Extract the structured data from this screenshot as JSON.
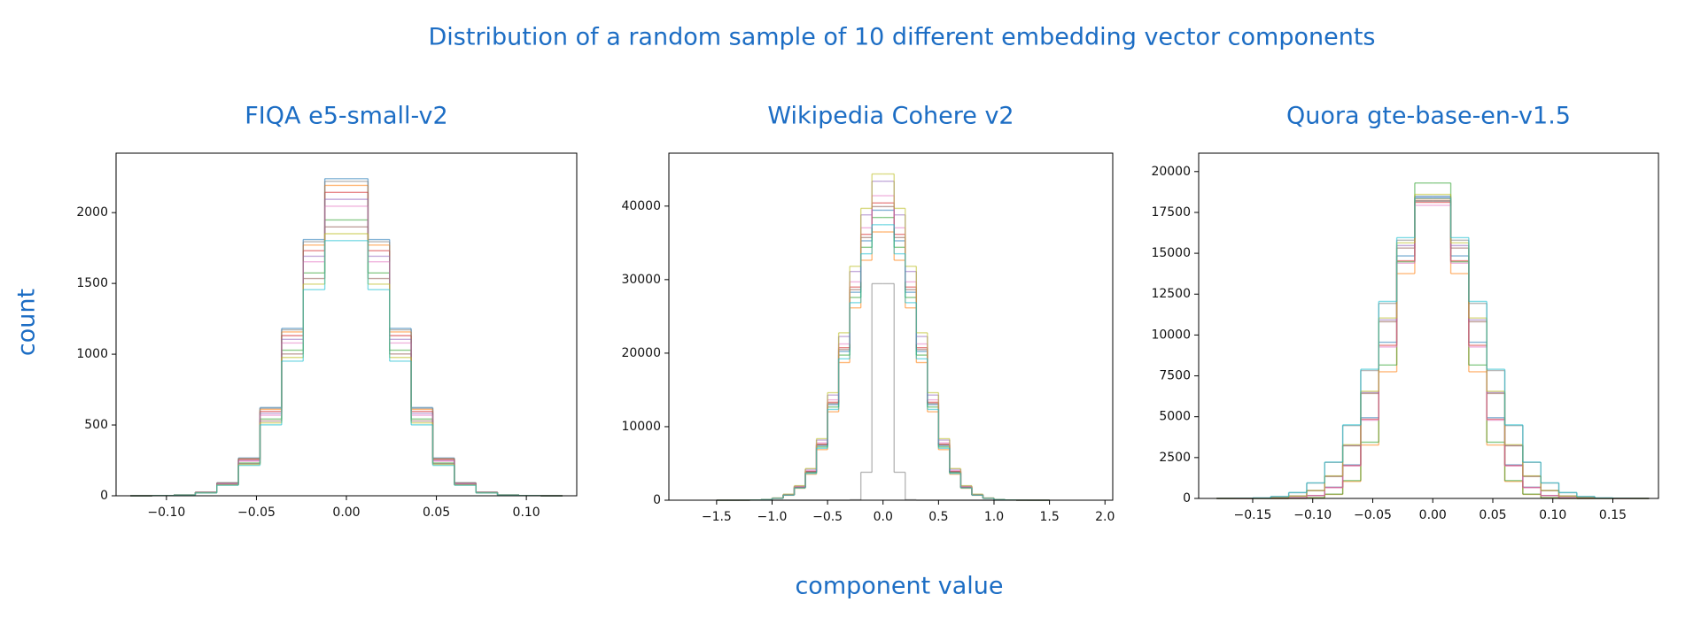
{
  "title": "Distribution of a random sample of 10 different embedding vector components",
  "xlabel": "component value",
  "ylabel": "count",
  "chart_data": [
    {
      "type": "histogram",
      "title": "FIQA e5-small-v2",
      "bins": [
        -0.12,
        -0.108,
        -0.096,
        -0.084,
        -0.072,
        -0.06,
        -0.048,
        -0.036,
        -0.024,
        -0.012,
        0,
        0.012,
        0.024,
        0.036,
        0.048,
        0.06,
        0.072,
        0.084,
        0.096,
        0.108,
        0.12
      ],
      "series": [
        {
          "color": "#1f77b4",
          "values": [
            0,
            1,
            6,
            25,
            92,
            267,
            623,
            1182,
            1810,
            2240,
            2240,
            1810,
            1182,
            623,
            267,
            92,
            25,
            6,
            1,
            0
          ]
        },
        {
          "color": "#ff7f0e",
          "values": [
            0,
            1,
            6,
            25,
            90,
            261,
            610,
            1157,
            1771,
            2192,
            2192,
            1771,
            1157,
            610,
            261,
            90,
            25,
            6,
            1,
            0
          ]
        },
        {
          "color": "#2ca02c",
          "values": [
            0,
            1,
            5,
            22,
            80,
            232,
            542,
            1028,
            1574,
            1948,
            1948,
            1574,
            1028,
            542,
            232,
            80,
            22,
            5,
            1,
            0
          ]
        },
        {
          "color": "#d62728",
          "values": [
            0,
            1,
            6,
            24,
            88,
            255,
            596,
            1131,
            1731,
            2143,
            2143,
            1731,
            1131,
            596,
            255,
            88,
            24,
            6,
            1,
            0
          ]
        },
        {
          "color": "#9467bd",
          "values": [
            0,
            1,
            5,
            24,
            86,
            249,
            583,
            1105,
            1692,
            2094,
            2094,
            1692,
            1105,
            583,
            249,
            86,
            24,
            5,
            1,
            0
          ]
        },
        {
          "color": "#8c564b",
          "values": [
            0,
            1,
            5,
            21,
            78,
            226,
            528,
            1002,
            1535,
            1899,
            1899,
            1535,
            1002,
            528,
            226,
            78,
            21,
            5,
            1,
            0
          ]
        },
        {
          "color": "#e377c2",
          "values": [
            0,
            1,
            5,
            23,
            84,
            244,
            569,
            1079,
            1653,
            2045,
            2045,
            1653,
            1079,
            569,
            244,
            84,
            23,
            5,
            1,
            0
          ]
        },
        {
          "color": "#7f7f7f",
          "values": [
            0,
            1,
            6,
            25,
            91,
            264,
            618,
            1172,
            1794,
            2221,
            2221,
            1794,
            1172,
            618,
            264,
            91,
            25,
            6,
            1,
            0
          ]
        },
        {
          "color": "#bcbd22",
          "values": [
            0,
            1,
            5,
            21,
            76,
            220,
            515,
            977,
            1495,
            1851,
            1851,
            1495,
            977,
            515,
            220,
            76,
            21,
            5,
            1,
            0
          ]
        },
        {
          "color": "#17becf",
          "values": [
            0,
            1,
            5,
            20,
            74,
            215,
            501,
            951,
            1456,
            1802,
            1802,
            1456,
            951,
            501,
            215,
            74,
            20,
            5,
            1,
            0
          ]
        }
      ],
      "xlim": [
        -0.128,
        0.128
      ],
      "ylim": [
        0,
        2420
      ],
      "xticks": [
        {
          "value": -0.1,
          "label": "−0.10"
        },
        {
          "value": -0.05,
          "label": "−0.05"
        },
        {
          "value": 0,
          "label": "0.00"
        },
        {
          "value": 0.05,
          "label": "0.05"
        },
        {
          "value": 0.1,
          "label": "0.10"
        }
      ],
      "yticks": [
        0,
        500,
        1000,
        1500,
        2000
      ]
    },
    {
      "type": "histogram",
      "title": "Wikipedia Cohere v2",
      "bins": [
        -1.5,
        -1.4,
        -1.3,
        -1.2,
        -1.1,
        -1.0,
        -0.9,
        -0.8,
        -0.7,
        -0.6,
        -0.5,
        -0.4,
        -0.3,
        -0.2,
        -0.1,
        0,
        0.1,
        0.2,
        0.3,
        0.4,
        0.5,
        0.6,
        0.7,
        0.8,
        0.9,
        1.0,
        1.1,
        1.2,
        1.3,
        1.4,
        1.5
      ],
      "series": [
        {
          "color": "#1f77b4",
          "values": [
            0,
            2,
            7,
            26,
            88,
            268,
            724,
            1756,
            3828,
            7440,
            13000,
            20240,
            28280,
            35280,
            39440,
            39440,
            35280,
            28280,
            20240,
            13000,
            7440,
            3828,
            1756,
            724,
            268,
            88,
            26,
            7,
            2,
            0
          ]
        },
        {
          "color": "#ff7f0e",
          "values": [
            0,
            2,
            6,
            24,
            81,
            248,
            670,
            1624,
            3541,
            6882,
            12025,
            18722,
            26159,
            32634,
            36482,
            36482,
            32634,
            26159,
            18722,
            12025,
            6882,
            3541,
            1624,
            670,
            248,
            81,
            24,
            6,
            2,
            0
          ]
        },
        {
          "color": "#2ca02c",
          "values": [
            0,
            2,
            7,
            25,
            86,
            261,
            706,
            1712,
            3732,
            7254,
            12675,
            19734,
            27573,
            34398,
            38454,
            38454,
            34398,
            27573,
            19734,
            12675,
            7254,
            3732,
            1712,
            706,
            261,
            86,
            25,
            7,
            2,
            0
          ]
        },
        {
          "color": "#d62728",
          "values": [
            0,
            2,
            7,
            27,
            90,
            275,
            742,
            1800,
            3924,
            7626,
            13325,
            20746,
            28987,
            36162,
            40426,
            40426,
            36162,
            28987,
            20746,
            13325,
            7626,
            3924,
            1800,
            742,
            275,
            90,
            27,
            7,
            2,
            0
          ]
        },
        {
          "color": "#9467bd",
          "values": [
            0,
            2,
            8,
            29,
            97,
            295,
            796,
            1932,
            4211,
            8184,
            14300,
            22264,
            31108,
            38808,
            43384,
            43384,
            38808,
            31108,
            22264,
            14300,
            8184,
            4211,
            1932,
            796,
            295,
            97,
            29,
            8,
            2,
            0
          ]
        },
        {
          "color": "#8c564b",
          "values": [
            0,
            2,
            7,
            26,
            89,
            271,
            733,
            1778,
            3876,
            7533,
            13163,
            20493,
            28634,
            35721,
            39933,
            39933,
            35721,
            28634,
            20493,
            13163,
            7533,
            3876,
            1778,
            733,
            271,
            89,
            26,
            7,
            2,
            0
          ]
        },
        {
          "color": "#e377c2",
          "values": [
            0,
            2,
            7,
            27,
            92,
            281,
            760,
            1844,
            4019,
            7812,
            13650,
            21252,
            29694,
            37044,
            41412,
            41412,
            37044,
            29694,
            21252,
            13650,
            7812,
            4019,
            1844,
            760,
            281,
            92,
            27,
            7,
            2,
            0
          ]
        },
        {
          "color": "#7f7f7f",
          "values": [
            0,
            0,
            0,
            0,
            0,
            0,
            0,
            0,
            0,
            0,
            0,
            0,
            65,
            3800,
            29450,
            29450,
            3800,
            65,
            0,
            0,
            0,
            0,
            0,
            0,
            0,
            0,
            0,
            0,
            0,
            0
          ]
        },
        {
          "color": "#bcbd22",
          "values": [
            0,
            2,
            8,
            29,
            99,
            302,
            815,
            1976,
            4307,
            8370,
            14625,
            22770,
            31815,
            39690,
            44370,
            44370,
            39690,
            31815,
            22770,
            14625,
            8370,
            4307,
            1976,
            815,
            302,
            99,
            29,
            8,
            2,
            0
          ]
        },
        {
          "color": "#17becf",
          "values": [
            0,
            2,
            7,
            25,
            84,
            255,
            688,
            1668,
            3637,
            7068,
            12350,
            19228,
            26866,
            33516,
            37468,
            37468,
            33516,
            26866,
            19228,
            12350,
            7068,
            3637,
            1668,
            688,
            255,
            84,
            25,
            7,
            2,
            0
          ]
        }
      ],
      "xlim": [
        -1.93,
        2.07
      ],
      "ylim": [
        0,
        47200
      ],
      "xticks": [
        {
          "value": -1.5,
          "label": "−1.5"
        },
        {
          "value": -1,
          "label": "−1.0"
        },
        {
          "value": -0.5,
          "label": "−0.5"
        },
        {
          "value": 0,
          "label": "0.0"
        },
        {
          "value": 0.5,
          "label": "0.5"
        },
        {
          "value": 1,
          "label": "1.0"
        },
        {
          "value": 1.5,
          "label": "1.5"
        },
        {
          "value": 2,
          "label": "2.0"
        }
      ],
      "yticks": [
        0,
        10000,
        20000,
        30000,
        40000
      ]
    },
    {
      "type": "histogram",
      "title": "Quora gte-base-en-v1.5",
      "bins": [
        -0.18,
        -0.165,
        -0.15,
        -0.135,
        -0.12,
        -0.105,
        -0.09,
        -0.075,
        -0.06,
        -0.045,
        -0.03,
        -0.015,
        0,
        0.015,
        0.03,
        0.045,
        0.06,
        0.075,
        0.09,
        0.105,
        0.12,
        0.135,
        0.15,
        0.165,
        0.18
      ],
      "series": [
        {
          "color": "#1f77b4",
          "values": [
            0,
            0,
            1,
            7,
            40,
            182,
            684,
            2052,
            4940,
            9557,
            14839,
            18487,
            18487,
            14839,
            9557,
            4940,
            2052,
            684,
            182,
            40,
            7,
            1,
            0,
            0
          ]
        },
        {
          "color": "#ff7f0e",
          "values": [
            0,
            0,
            0,
            0,
            6,
            44,
            247,
            1039,
            3268,
            7752,
            13756,
            18335,
            18335,
            13756,
            7752,
            3268,
            1039,
            247,
            44,
            6,
            0,
            0,
            0,
            0
          ]
        },
        {
          "color": "#2ca02c",
          "values": [
            0,
            0,
            0,
            0,
            6,
            46,
            260,
            1094,
            3440,
            8160,
            14480,
            19300,
            19300,
            14480,
            8160,
            3440,
            1094,
            260,
            46,
            6,
            0,
            0,
            0,
            0
          ]
        },
        {
          "color": "#d62728",
          "values": [
            0,
            0,
            1,
            7,
            39,
            178,
            670,
            2011,
            4841,
            9366,
            14542,
            18117,
            18117,
            14542,
            9366,
            4841,
            2011,
            670,
            178,
            39,
            7,
            1,
            0,
            0
          ]
        },
        {
          "color": "#9467bd",
          "values": [
            0,
            2,
            8,
            36,
            143,
            481,
            1361,
            3252,
            6486,
            10923,
            15472,
            18405,
            18405,
            15472,
            10923,
            6486,
            3252,
            1361,
            481,
            143,
            36,
            8,
            2,
            0
          ]
        },
        {
          "color": "#8c564b",
          "values": [
            0,
            2,
            8,
            36,
            142,
            476,
            1347,
            3220,
            6421,
            10814,
            15318,
            18221,
            18221,
            15318,
            10814,
            6421,
            3220,
            1347,
            476,
            142,
            36,
            8,
            2,
            0
          ]
        },
        {
          "color": "#e377c2",
          "values": [
            0,
            0,
            1,
            7,
            39,
            177,
            664,
            1990,
            4792,
            9270,
            14394,
            17932,
            17932,
            14394,
            9270,
            4792,
            1990,
            664,
            177,
            39,
            7,
            1,
            0,
            0
          ]
        },
        {
          "color": "#7f7f7f",
          "values": [
            2,
            8,
            32,
            115,
            355,
            944,
            2202,
            4459,
            7826,
            11933,
            15799,
            18186,
            18186,
            15799,
            11933,
            7826,
            4459,
            2202,
            944,
            355,
            115,
            32,
            8,
            2
          ]
        },
        {
          "color": "#bcbd22",
          "values": [
            0,
            2,
            8,
            36,
            144,
            486,
            1376,
            3287,
            6555,
            11039,
            15637,
            18601,
            18601,
            15637,
            11039,
            6555,
            3287,
            1376,
            486,
            144,
            36,
            8,
            2,
            0
          ]
        },
        {
          "color": "#17becf",
          "values": [
            2,
            8,
            32,
            116,
            359,
            953,
            2224,
            4503,
            7904,
            12052,
            15957,
            18367,
            18367,
            15957,
            12052,
            7904,
            4503,
            2224,
            953,
            359,
            116,
            32,
            8,
            2
          ]
        }
      ],
      "xlim": [
        -0.195,
        0.188
      ],
      "ylim": [
        0,
        21126
      ],
      "xticks": [
        {
          "value": -0.15,
          "label": "−0.15"
        },
        {
          "value": -0.1,
          "label": "−0.10"
        },
        {
          "value": -0.05,
          "label": "−0.05"
        },
        {
          "value": 0,
          "label": "0.00"
        },
        {
          "value": 0.05,
          "label": "0.05"
        },
        {
          "value": 0.1,
          "label": "0.10"
        },
        {
          "value": 0.15,
          "label": "0.15"
        }
      ],
      "yticks": [
        0,
        2500,
        5000,
        7500,
        10000,
        12500,
        15000,
        17500,
        20000
      ]
    }
  ]
}
